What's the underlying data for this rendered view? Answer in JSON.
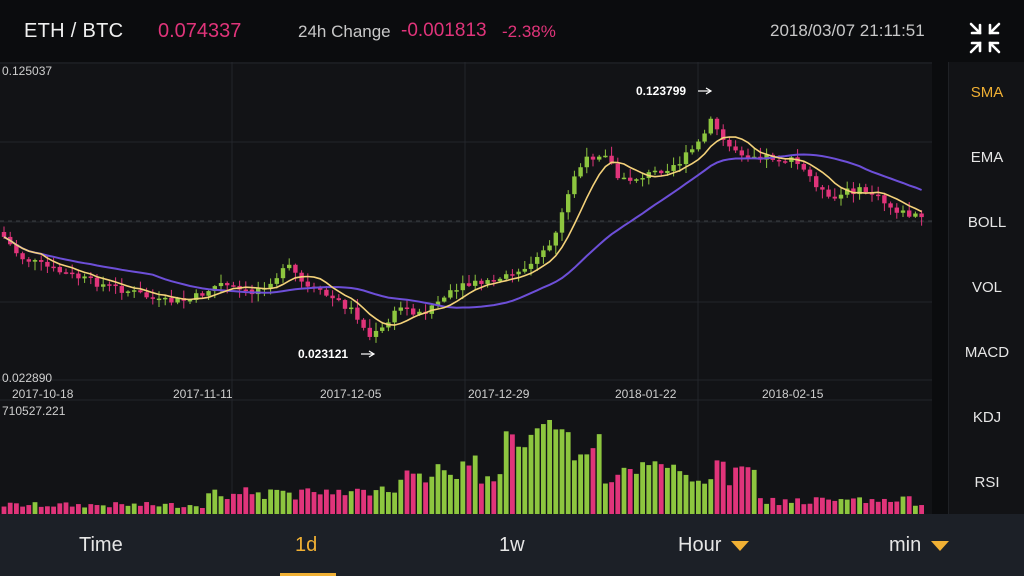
{
  "header": {
    "pair": "ETH / BTC",
    "price": "0.074337",
    "change_label": "24h Change",
    "change_value": "-0.001813",
    "change_pct": "-2.38%",
    "datetime": "2018/03/07 21:11:51",
    "collapse_icon": "collapse-arrows-icon"
  },
  "chart": {
    "y_top": "0.125037",
    "y_bottom": "0.022890",
    "high_label": "0.123799",
    "low_label": "0.023121",
    "dates": [
      "2017-10-18",
      "2017-11-11",
      "2017-12-05",
      "2017-12-29",
      "2018-01-22",
      "2018-02-15"
    ],
    "volume_max": "710527.221"
  },
  "colors": {
    "up": "#8dc63f",
    "down": "#e0347a",
    "ma_short": "#f4d27a",
    "ma_long": "#6d4fd8",
    "accent": "#f0b034"
  },
  "indicators": [
    "SMA",
    "EMA",
    "BOLL",
    "VOL",
    "MACD",
    "KDJ",
    "RSI"
  ],
  "active_indicator": "SMA",
  "tabs": {
    "time": "Time",
    "day": "1d",
    "week": "1w",
    "hour": "Hour",
    "min": "min"
  }
}
